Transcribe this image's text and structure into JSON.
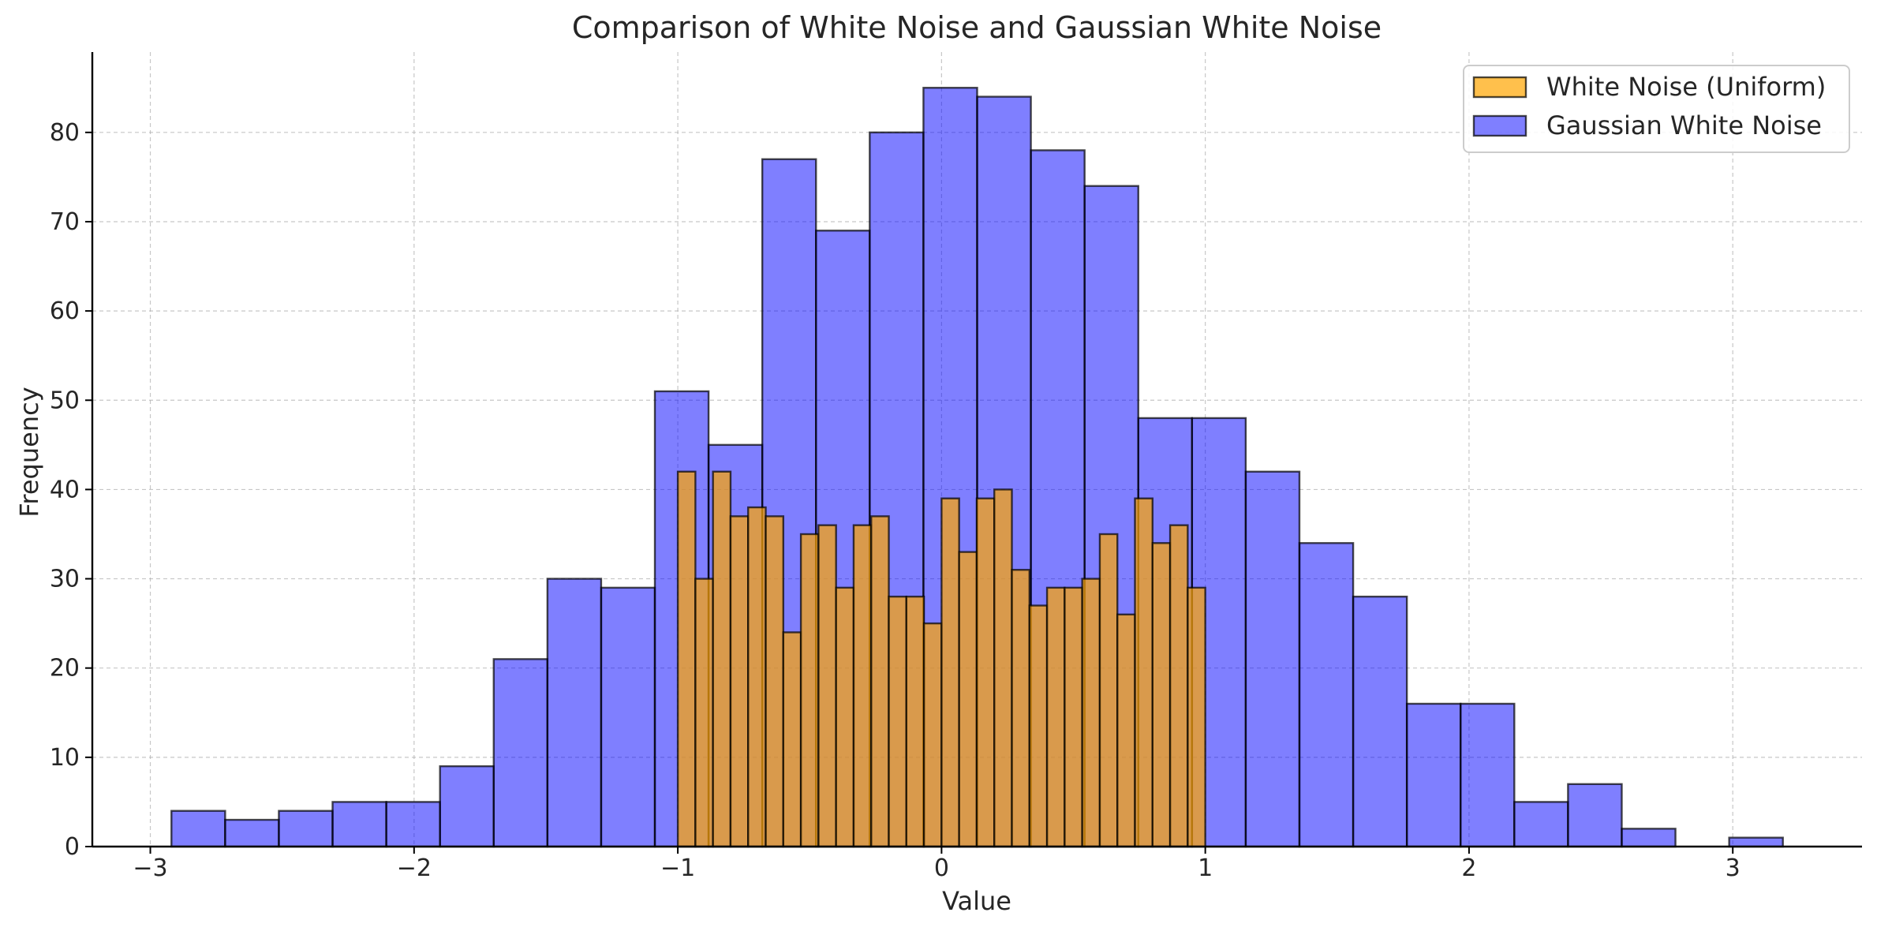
{
  "chart_data": {
    "type": "bar",
    "title": "Comparison of White Noise and Gaussian White Noise",
    "xlabel": "Value",
    "ylabel": "Frequency",
    "xlim": [
      -3.22,
      3.49
    ],
    "ylim": [
      0,
      89
    ],
    "xticks": [
      {
        "value": -3,
        "label": "−3"
      },
      {
        "value": -2,
        "label": "−2"
      },
      {
        "value": -1,
        "label": "−1"
      },
      {
        "value": 0,
        "label": "0"
      },
      {
        "value": 1,
        "label": "1"
      },
      {
        "value": 2,
        "label": "2"
      },
      {
        "value": 3,
        "label": "3"
      }
    ],
    "yticks": [
      {
        "value": 0,
        "label": "0"
      },
      {
        "value": 10,
        "label": "10"
      },
      {
        "value": 20,
        "label": "20"
      },
      {
        "value": 30,
        "label": "30"
      },
      {
        "value": 40,
        "label": "40"
      },
      {
        "value": 50,
        "label": "50"
      },
      {
        "value": 60,
        "label": "60"
      },
      {
        "value": 70,
        "label": "70"
      },
      {
        "value": 80,
        "label": "80"
      }
    ],
    "grid": true,
    "legend_position": "top-right",
    "series": [
      {
        "name": "White Noise (Uniform)",
        "kind": "histogram",
        "color": "#ffa500",
        "alpha": 0.7,
        "edge_color": "#000000",
        "bin_start": -1.0,
        "bin_end": 1.0,
        "counts": [
          42,
          30,
          42,
          37,
          38,
          37,
          24,
          35,
          36,
          29,
          36,
          37,
          28,
          28,
          25,
          39,
          33,
          39,
          40,
          31,
          27,
          29,
          29,
          30,
          35,
          26,
          39,
          34,
          36,
          29
        ]
      },
      {
        "name": "Gaussian White Noise",
        "kind": "histogram",
        "color": "#0000ff",
        "alpha": 0.5,
        "edge_color": "#000000",
        "bin_start": -2.92,
        "bin_end": 3.19,
        "counts": [
          4,
          3,
          4,
          5,
          5,
          9,
          21,
          30,
          29,
          51,
          45,
          77,
          69,
          80,
          85,
          84,
          78,
          74,
          48,
          48,
          42,
          34,
          28,
          16,
          16,
          5,
          7,
          2,
          0,
          1
        ]
      }
    ]
  }
}
